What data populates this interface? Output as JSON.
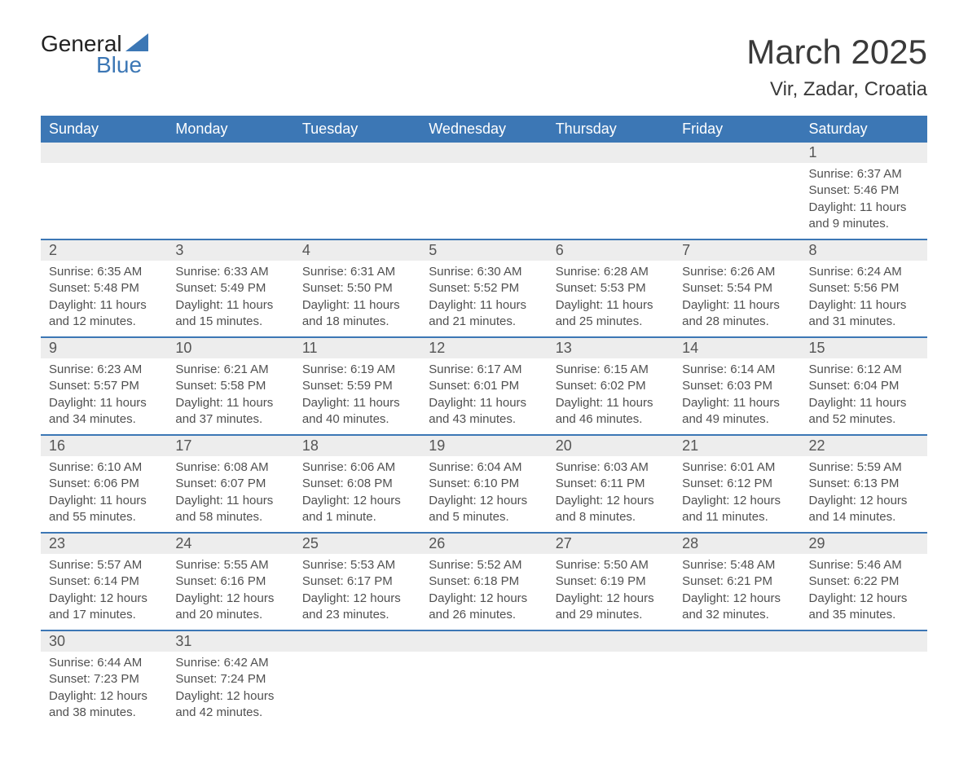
{
  "logo": {
    "line1": "General",
    "line2": "Blue"
  },
  "title": "March 2025",
  "location": "Vir, Zadar, Croatia",
  "colors": {
    "header_bg": "#3c77b5",
    "header_text": "#ffffff",
    "daynum_bg": "#ededed",
    "border_top": "#3c77b5",
    "body_text": "#505050",
    "page_bg": "#ffffff"
  },
  "typography": {
    "title_fontsize": 42,
    "location_fontsize": 24,
    "dow_fontsize": 18,
    "daynum_fontsize": 18,
    "info_fontsize": 15
  },
  "days_of_week": [
    "Sunday",
    "Monday",
    "Tuesday",
    "Wednesday",
    "Thursday",
    "Friday",
    "Saturday"
  ],
  "weeks": [
    [
      null,
      null,
      null,
      null,
      null,
      null,
      {
        "n": "1",
        "sunrise": "Sunrise: 6:37 AM",
        "sunset": "Sunset: 5:46 PM",
        "daylight1": "Daylight: 11 hours",
        "daylight2": "and 9 minutes."
      }
    ],
    [
      {
        "n": "2",
        "sunrise": "Sunrise: 6:35 AM",
        "sunset": "Sunset: 5:48 PM",
        "daylight1": "Daylight: 11 hours",
        "daylight2": "and 12 minutes."
      },
      {
        "n": "3",
        "sunrise": "Sunrise: 6:33 AM",
        "sunset": "Sunset: 5:49 PM",
        "daylight1": "Daylight: 11 hours",
        "daylight2": "and 15 minutes."
      },
      {
        "n": "4",
        "sunrise": "Sunrise: 6:31 AM",
        "sunset": "Sunset: 5:50 PM",
        "daylight1": "Daylight: 11 hours",
        "daylight2": "and 18 minutes."
      },
      {
        "n": "5",
        "sunrise": "Sunrise: 6:30 AM",
        "sunset": "Sunset: 5:52 PM",
        "daylight1": "Daylight: 11 hours",
        "daylight2": "and 21 minutes."
      },
      {
        "n": "6",
        "sunrise": "Sunrise: 6:28 AM",
        "sunset": "Sunset: 5:53 PM",
        "daylight1": "Daylight: 11 hours",
        "daylight2": "and 25 minutes."
      },
      {
        "n": "7",
        "sunrise": "Sunrise: 6:26 AM",
        "sunset": "Sunset: 5:54 PM",
        "daylight1": "Daylight: 11 hours",
        "daylight2": "and 28 minutes."
      },
      {
        "n": "8",
        "sunrise": "Sunrise: 6:24 AM",
        "sunset": "Sunset: 5:56 PM",
        "daylight1": "Daylight: 11 hours",
        "daylight2": "and 31 minutes."
      }
    ],
    [
      {
        "n": "9",
        "sunrise": "Sunrise: 6:23 AM",
        "sunset": "Sunset: 5:57 PM",
        "daylight1": "Daylight: 11 hours",
        "daylight2": "and 34 minutes."
      },
      {
        "n": "10",
        "sunrise": "Sunrise: 6:21 AM",
        "sunset": "Sunset: 5:58 PM",
        "daylight1": "Daylight: 11 hours",
        "daylight2": "and 37 minutes."
      },
      {
        "n": "11",
        "sunrise": "Sunrise: 6:19 AM",
        "sunset": "Sunset: 5:59 PM",
        "daylight1": "Daylight: 11 hours",
        "daylight2": "and 40 minutes."
      },
      {
        "n": "12",
        "sunrise": "Sunrise: 6:17 AM",
        "sunset": "Sunset: 6:01 PM",
        "daylight1": "Daylight: 11 hours",
        "daylight2": "and 43 minutes."
      },
      {
        "n": "13",
        "sunrise": "Sunrise: 6:15 AM",
        "sunset": "Sunset: 6:02 PM",
        "daylight1": "Daylight: 11 hours",
        "daylight2": "and 46 minutes."
      },
      {
        "n": "14",
        "sunrise": "Sunrise: 6:14 AM",
        "sunset": "Sunset: 6:03 PM",
        "daylight1": "Daylight: 11 hours",
        "daylight2": "and 49 minutes."
      },
      {
        "n": "15",
        "sunrise": "Sunrise: 6:12 AM",
        "sunset": "Sunset: 6:04 PM",
        "daylight1": "Daylight: 11 hours",
        "daylight2": "and 52 minutes."
      }
    ],
    [
      {
        "n": "16",
        "sunrise": "Sunrise: 6:10 AM",
        "sunset": "Sunset: 6:06 PM",
        "daylight1": "Daylight: 11 hours",
        "daylight2": "and 55 minutes."
      },
      {
        "n": "17",
        "sunrise": "Sunrise: 6:08 AM",
        "sunset": "Sunset: 6:07 PM",
        "daylight1": "Daylight: 11 hours",
        "daylight2": "and 58 minutes."
      },
      {
        "n": "18",
        "sunrise": "Sunrise: 6:06 AM",
        "sunset": "Sunset: 6:08 PM",
        "daylight1": "Daylight: 12 hours",
        "daylight2": "and 1 minute."
      },
      {
        "n": "19",
        "sunrise": "Sunrise: 6:04 AM",
        "sunset": "Sunset: 6:10 PM",
        "daylight1": "Daylight: 12 hours",
        "daylight2": "and 5 minutes."
      },
      {
        "n": "20",
        "sunrise": "Sunrise: 6:03 AM",
        "sunset": "Sunset: 6:11 PM",
        "daylight1": "Daylight: 12 hours",
        "daylight2": "and 8 minutes."
      },
      {
        "n": "21",
        "sunrise": "Sunrise: 6:01 AM",
        "sunset": "Sunset: 6:12 PM",
        "daylight1": "Daylight: 12 hours",
        "daylight2": "and 11 minutes."
      },
      {
        "n": "22",
        "sunrise": "Sunrise: 5:59 AM",
        "sunset": "Sunset: 6:13 PM",
        "daylight1": "Daylight: 12 hours",
        "daylight2": "and 14 minutes."
      }
    ],
    [
      {
        "n": "23",
        "sunrise": "Sunrise: 5:57 AM",
        "sunset": "Sunset: 6:14 PM",
        "daylight1": "Daylight: 12 hours",
        "daylight2": "and 17 minutes."
      },
      {
        "n": "24",
        "sunrise": "Sunrise: 5:55 AM",
        "sunset": "Sunset: 6:16 PM",
        "daylight1": "Daylight: 12 hours",
        "daylight2": "and 20 minutes."
      },
      {
        "n": "25",
        "sunrise": "Sunrise: 5:53 AM",
        "sunset": "Sunset: 6:17 PM",
        "daylight1": "Daylight: 12 hours",
        "daylight2": "and 23 minutes."
      },
      {
        "n": "26",
        "sunrise": "Sunrise: 5:52 AM",
        "sunset": "Sunset: 6:18 PM",
        "daylight1": "Daylight: 12 hours",
        "daylight2": "and 26 minutes."
      },
      {
        "n": "27",
        "sunrise": "Sunrise: 5:50 AM",
        "sunset": "Sunset: 6:19 PM",
        "daylight1": "Daylight: 12 hours",
        "daylight2": "and 29 minutes."
      },
      {
        "n": "28",
        "sunrise": "Sunrise: 5:48 AM",
        "sunset": "Sunset: 6:21 PM",
        "daylight1": "Daylight: 12 hours",
        "daylight2": "and 32 minutes."
      },
      {
        "n": "29",
        "sunrise": "Sunrise: 5:46 AM",
        "sunset": "Sunset: 6:22 PM",
        "daylight1": "Daylight: 12 hours",
        "daylight2": "and 35 minutes."
      }
    ],
    [
      {
        "n": "30",
        "sunrise": "Sunrise: 6:44 AM",
        "sunset": "Sunset: 7:23 PM",
        "daylight1": "Daylight: 12 hours",
        "daylight2": "and 38 minutes."
      },
      {
        "n": "31",
        "sunrise": "Sunrise: 6:42 AM",
        "sunset": "Sunset: 7:24 PM",
        "daylight1": "Daylight: 12 hours",
        "daylight2": "and 42 minutes."
      },
      null,
      null,
      null,
      null,
      null
    ]
  ]
}
